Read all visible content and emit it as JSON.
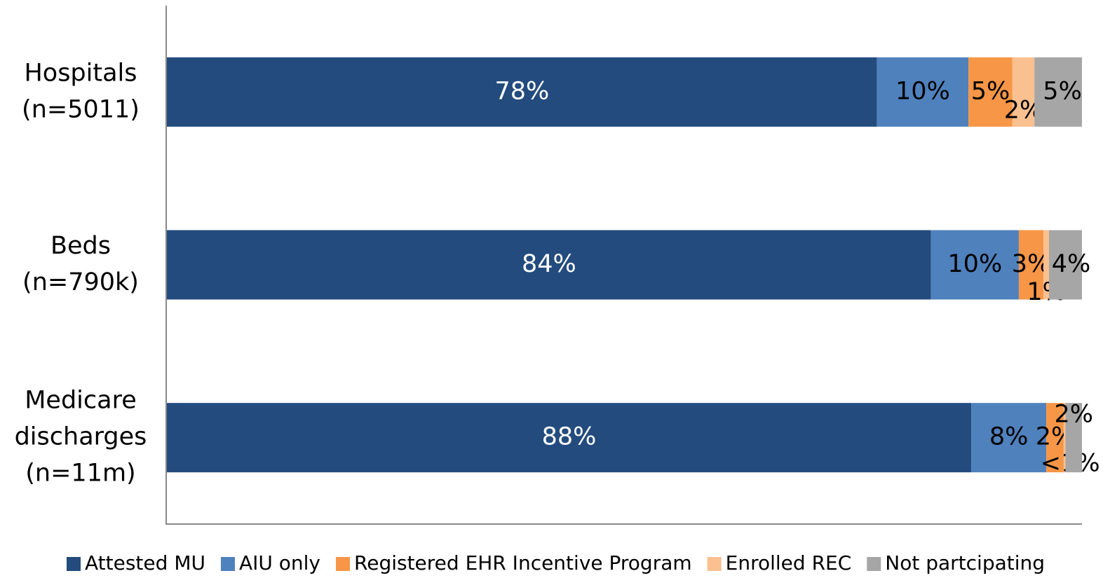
{
  "chart_data": {
    "type": "stacked-barh",
    "categories": [
      [
        "Hospitals",
        "(n=5011)"
      ],
      [
        "Beds",
        "(n=790k)"
      ],
      [
        "Medicare",
        "discharges",
        "(n=11m)"
      ]
    ],
    "xlim": [
      0,
      100
    ],
    "legend": "bottom",
    "series": [
      {
        "name": "Attested MU",
        "color": "#234b7e",
        "values": [
          77.6,
          83.5,
          87.9
        ],
        "value_labels": [
          "78%",
          "84%",
          "88%"
        ]
      },
      {
        "name": "AIU only",
        "color": "#4f81bd",
        "values": [
          10,
          9.6,
          8.2
        ],
        "value_labels": [
          "10%",
          "10%",
          "8%"
        ]
      },
      {
        "name": "Registered EHR Incentive Program",
        "color": "#f79646",
        "values": [
          4.8,
          2.7,
          1.9
        ],
        "value_labels": [
          "5%",
          "3%",
          "2%"
        ]
      },
      {
        "name": "Enrolled REC",
        "color": "#fac090",
        "values": [
          2.4,
          0.6,
          0.2
        ],
        "value_labels": [
          "2%",
          "1%",
          "<1%"
        ]
      },
      {
        "name": "Not partcipating",
        "color": "#a6a6a6",
        "values": [
          5.2,
          3.6,
          1.8
        ],
        "value_labels": [
          "5%",
          "4%",
          "2%"
        ]
      }
    ]
  }
}
